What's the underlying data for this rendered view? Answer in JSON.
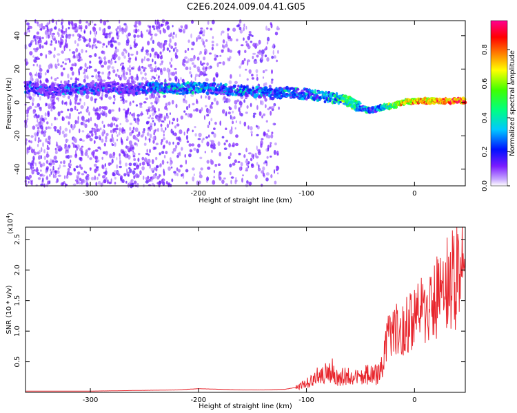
{
  "title": "C2E6.2024.009.04.41.G05",
  "chart_data": [
    {
      "type": "heatmap",
      "xlabel": "Height of straight line (km)",
      "ylabel": "Frequency (Hz)",
      "xlim": [
        -360,
        47
      ],
      "ylim": [
        -50,
        49
      ],
      "xticks": [
        -300,
        -200,
        -100,
        0
      ],
      "yticks": [
        -40,
        -20,
        0,
        20,
        40
      ],
      "grid": false,
      "colorbar": {
        "label": "Normalized spectral amplitude",
        "range": [
          0,
          0.97
        ],
        "ticks": [
          0.0,
          0.2,
          0.4,
          0.6,
          0.8
        ],
        "colormap": "rainbow"
      },
      "ridge": {
        "x": [
          -355,
          -340,
          -320,
          -300,
          -280,
          -260,
          -240,
          -220,
          -200,
          -180,
          -160,
          -140,
          -130,
          -120,
          -100,
          -90,
          -80,
          -70,
          -60,
          -50,
          -40,
          -35,
          -30,
          -20,
          -10,
          0,
          10,
          20,
          30,
          40,
          47
        ],
        "y": [
          9,
          7,
          8,
          8,
          9,
          8,
          9,
          8,
          9,
          8,
          7,
          6,
          5,
          6,
          5,
          4,
          3,
          2,
          0,
          -3,
          -5,
          -4,
          -3,
          -2,
          0,
          1,
          1,
          1,
          1,
          1,
          1
        ],
        "amplitude": [
          0.35,
          0.25,
          0.35,
          0.3,
          0.3,
          0.3,
          0.45,
          0.45,
          0.5,
          0.4,
          0.45,
          0.45,
          0.35,
          0.45,
          0.4,
          0.45,
          0.5,
          0.55,
          0.65,
          0.5,
          0.4,
          0.45,
          0.55,
          0.7,
          0.85,
          0.9,
          0.92,
          0.95,
          0.95,
          0.95,
          0.95
        ]
      }
    },
    {
      "type": "line",
      "xlabel": "Height of straight line (km)",
      "ylabel": "SNR (10 * v/v)",
      "y_scale_label": "(x10",
      "y_scale_exponent": "4",
      "y_scale_close": ")",
      "xlim": [
        -360,
        47
      ],
      "ylim": [
        0,
        2.7
      ],
      "xticks": [
        -300,
        -200,
        -100,
        0
      ],
      "yticks": [
        0.5,
        1.0,
        1.5,
        2.0,
        2.5
      ],
      "grid": false,
      "series": [
        {
          "color": "#e8262d",
          "x": [
            -360,
            -300,
            -260,
            -220,
            -200,
            -180,
            -160,
            -140,
            -120,
            -110,
            -100,
            -95,
            -90,
            -85,
            -80,
            -75,
            -70,
            -65,
            -60,
            -55,
            -50,
            -45,
            -40,
            -35,
            -30,
            -28,
            -25,
            -20,
            -15,
            -10,
            -5,
            0,
            5,
            10,
            15,
            20,
            25,
            30,
            35,
            40,
            45,
            47
          ],
          "y": [
            0.02,
            0.02,
            0.03,
            0.04,
            0.06,
            0.05,
            0.04,
            0.04,
            0.05,
            0.08,
            0.15,
            0.22,
            0.3,
            0.35,
            0.3,
            0.4,
            0.2,
            0.3,
            0.25,
            0.22,
            0.28,
            0.3,
            0.32,
            0.3,
            0.4,
            0.7,
            0.9,
            1.0,
            1.05,
            1.1,
            1.2,
            1.3,
            1.35,
            1.45,
            1.55,
            1.6,
            1.7,
            1.8,
            1.9,
            2.0,
            2.1,
            2.2
          ]
        }
      ]
    }
  ]
}
